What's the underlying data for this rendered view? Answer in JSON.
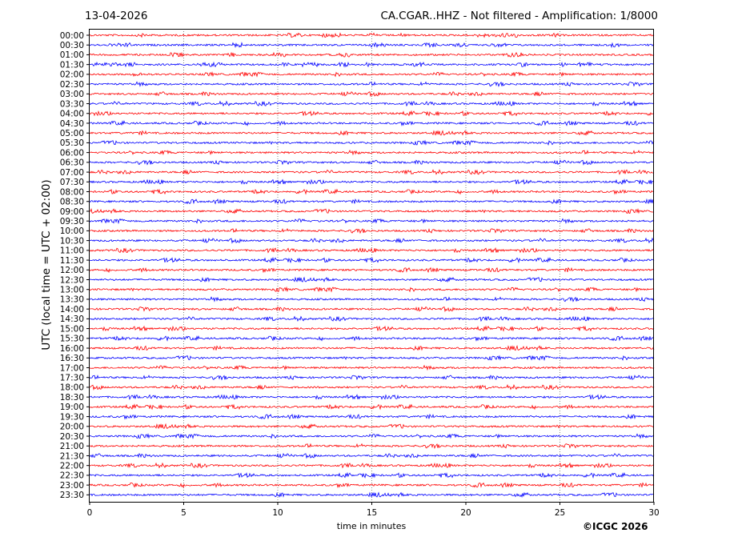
{
  "header": {
    "date": "13-04-2026",
    "station": "CA.CGAR..HHZ - Not filtered - Amplification: 1/8000"
  },
  "footer": {
    "copyright": "©ICGC 2026"
  },
  "chart_data": {
    "type": "line",
    "title": "CA.CGAR..HHZ - Not filtered - Amplification: 1/8000",
    "date": "13-04-2026",
    "xlabel": "time in minutes",
    "ylabel": "UTC (local time = UTC + 02:00)",
    "xlim": [
      0,
      30
    ],
    "x_ticks": [
      "0",
      "5",
      "10",
      "15",
      "20",
      "25",
      "30"
    ],
    "grid": "vertical dotted at x ticks",
    "y_categories": [
      "00:00",
      "00:30",
      "01:00",
      "01:30",
      "02:00",
      "02:30",
      "03:00",
      "03:30",
      "04:00",
      "04:30",
      "05:00",
      "05:30",
      "06:00",
      "06:30",
      "07:00",
      "07:30",
      "08:00",
      "08:30",
      "09:00",
      "09:30",
      "10:00",
      "10:30",
      "11:00",
      "11:30",
      "12:00",
      "12:30",
      "13:00",
      "13:30",
      "14:00",
      "14:30",
      "15:00",
      "15:30",
      "16:00",
      "16:30",
      "17:00",
      "17:30",
      "18:00",
      "18:30",
      "19:00",
      "19:30",
      "20:00",
      "20:30",
      "21:00",
      "21:30",
      "22:00",
      "22:30",
      "23:00",
      "23:30"
    ],
    "trace_colors": [
      "#ff0000",
      "#0000ff"
    ],
    "series_description_note": ""
  }
}
